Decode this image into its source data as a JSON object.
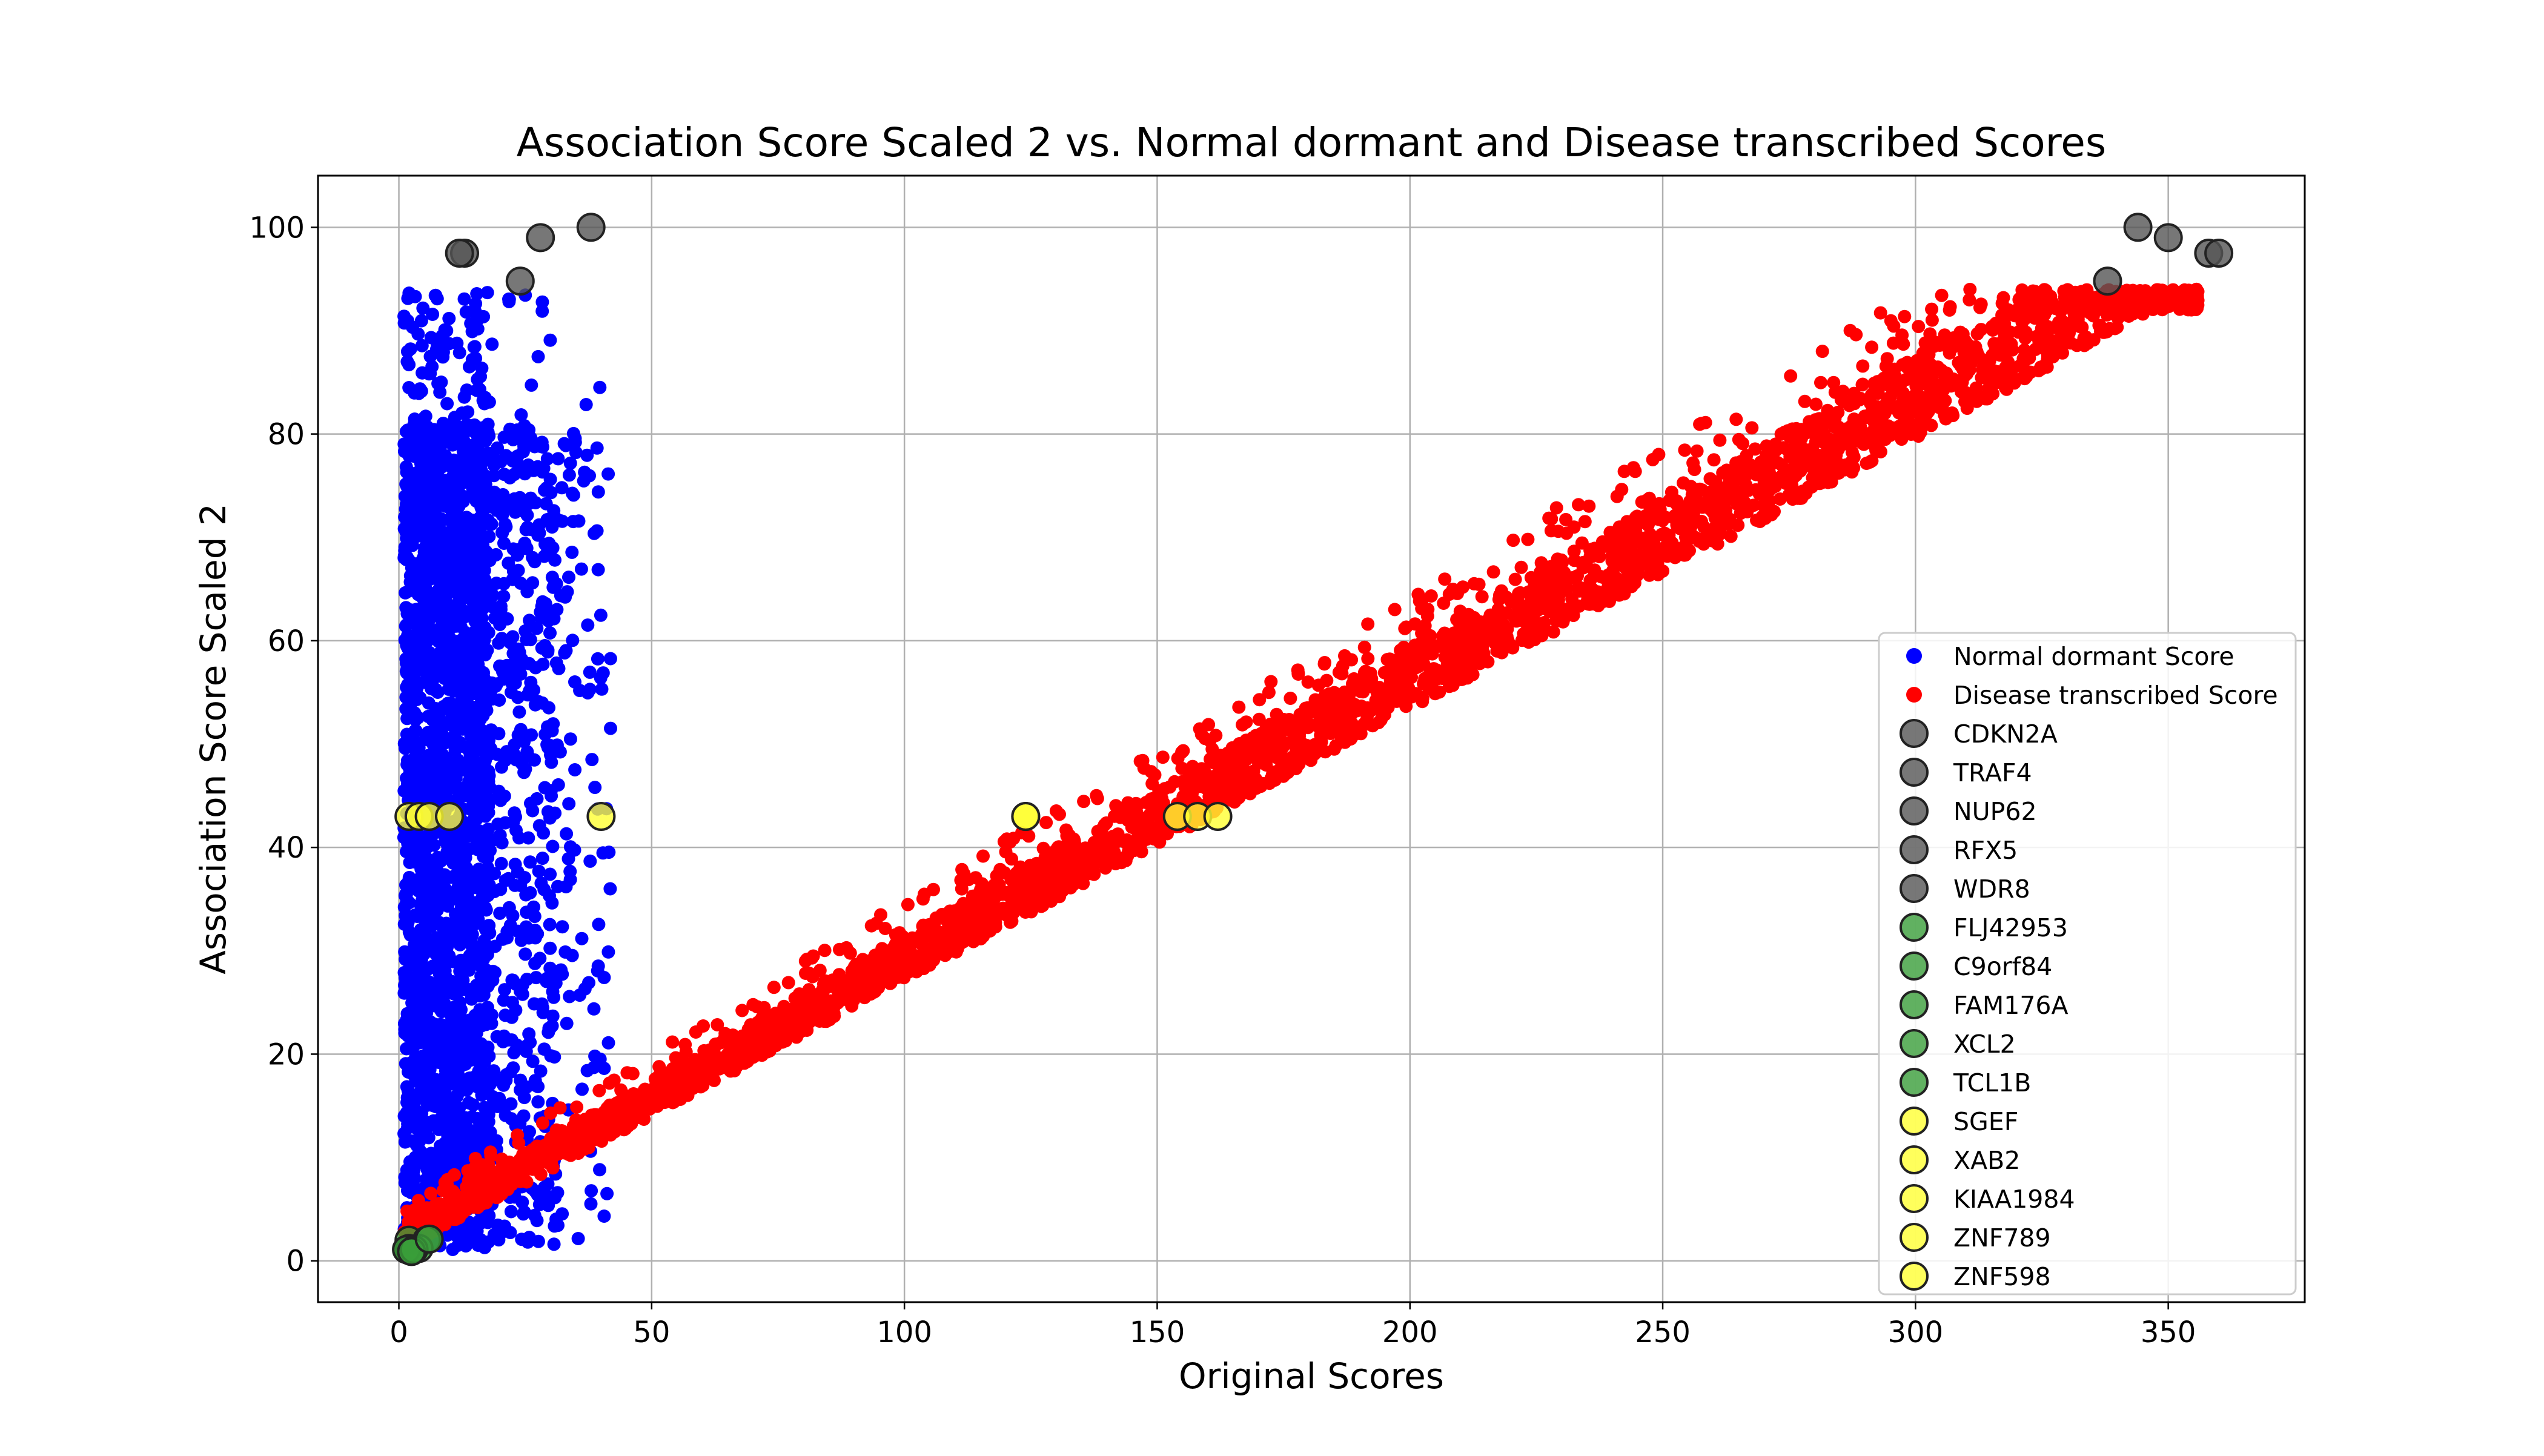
{
  "chart_data": {
    "type": "scatter",
    "title": "Association Score Scaled 2 vs. Normal dormant and Disease transcribed Scores",
    "xlabel": "Original Scores",
    "ylabel": "Association Score Scaled 2",
    "xlim": [
      -16,
      377
    ],
    "ylim": [
      -4,
      105
    ],
    "xticks": [
      0,
      50,
      100,
      150,
      200,
      250,
      300,
      350
    ],
    "yticks": [
      0,
      20,
      40,
      60,
      80,
      100
    ],
    "grid": true,
    "legend_position": "lower right",
    "series": [
      {
        "name": "Normal dormant Score",
        "color": "#0000ff",
        "note_sampled": "dense cloud of points, x range 1–42, y range 1–94",
        "x_range": [
          1,
          42
        ],
        "y_range": [
          1,
          94
        ]
      },
      {
        "name": "Disease transcribed Score",
        "color": "#ff0000",
        "note_sampled": "dense band following y ≈ 0.27·x, x range 1–356",
        "x_range": [
          1,
          356
        ],
        "y_range": [
          1,
          94
        ]
      }
    ],
    "highlighted_genes": [
      {
        "name": "CDKN2A",
        "color": "#555555",
        "points": [
          [
            13,
            97.5
          ],
          [
            358,
            97.5
          ]
        ]
      },
      {
        "name": "TRAF4",
        "color": "#555555",
        "points": [
          [
            12,
            97.5
          ],
          [
            360,
            97.5
          ]
        ]
      },
      {
        "name": "NUP62",
        "color": "#555555",
        "points": [
          [
            28,
            99
          ],
          [
            350,
            99
          ]
        ]
      },
      {
        "name": "RFX5",
        "color": "#555555",
        "points": [
          [
            24,
            94.8
          ],
          [
            338,
            94.8
          ]
        ]
      },
      {
        "name": "WDR8",
        "color": "#555555",
        "points": [
          [
            38,
            100
          ],
          [
            344,
            100
          ]
        ]
      },
      {
        "name": "FLJ42953",
        "color": "#3a9e3a",
        "points": [
          [
            2,
            2
          ],
          [
            5.5,
            2
          ]
        ]
      },
      {
        "name": "C9orf84",
        "color": "#3a9e3a",
        "points": [
          [
            2,
            1.2
          ],
          [
            4,
            1.2
          ]
        ]
      },
      {
        "name": "FAM176A",
        "color": "#3a9e3a",
        "points": [
          [
            2,
            1
          ],
          [
            2.5,
            1
          ]
        ]
      },
      {
        "name": "XCL2",
        "color": "#3a9e3a",
        "points": [
          [
            1.5,
            1.1
          ],
          [
            3,
            1.1
          ]
        ]
      },
      {
        "name": "TCL1B",
        "color": "#3a9e3a",
        "points": [
          [
            2.5,
            0.9
          ],
          [
            6,
            2.1
          ]
        ]
      },
      {
        "name": "SGEF",
        "color": "#ffff33",
        "points": [
          [
            2,
            43
          ],
          [
            154,
            43
          ]
        ]
      },
      {
        "name": "XAB2",
        "color": "#ffff33",
        "points": [
          [
            4,
            43
          ],
          [
            158,
            43
          ]
        ]
      },
      {
        "name": "KIAA1984",
        "color": "#ffff33",
        "points": [
          [
            6,
            43
          ],
          [
            162,
            43
          ]
        ]
      },
      {
        "name": "ZNF789",
        "color": "#ffff33",
        "points": [
          [
            10,
            43
          ],
          [
            124,
            43
          ]
        ]
      },
      {
        "name": "ZNF598",
        "color": "#ffff33",
        "points": [
          [
            40,
            43
          ],
          [
            124,
            43
          ]
        ]
      }
    ]
  }
}
